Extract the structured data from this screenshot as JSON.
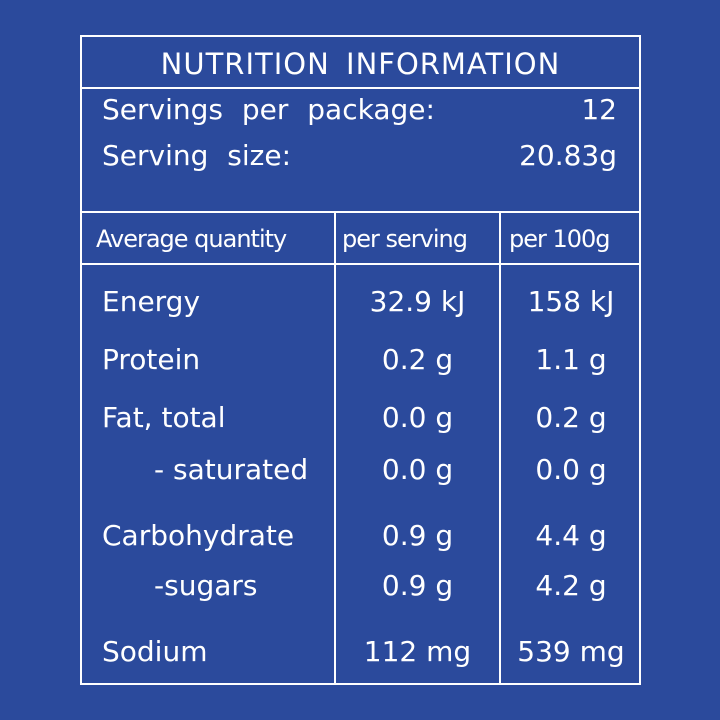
{
  "title": "NUTRITION INFORMATION",
  "servings": [
    {
      "label": "Servings per package:",
      "value": "12"
    },
    {
      "label": "Serving size:",
      "value": "20.83g"
    }
  ],
  "header": {
    "col1": "Average quantity",
    "col2": "per serving",
    "col3": "per 100g"
  },
  "rows": [
    {
      "name": "Energy",
      "per_serving": "32.9 kJ",
      "per_100g": "158 kJ"
    },
    {
      "name": "Protein",
      "per_serving": "0.2 g",
      "per_100g": "1.1 g"
    },
    {
      "name": "Fat, total",
      "per_serving": "0.0 g",
      "per_100g": "0.2 g"
    },
    {
      "name": "- saturated",
      "per_serving": "0.0 g",
      "per_100g": "0.0 g"
    },
    {
      "name": "Carbohydrate",
      "per_serving": "0.9 g",
      "per_100g": "4.4 g"
    },
    {
      "name": "-sugars",
      "per_serving": "0.9 g",
      "per_100g": "4.2 g"
    },
    {
      "name": "Sodium",
      "per_serving": "112 mg",
      "per_100g": "539 mg"
    }
  ],
  "colors": {
    "background": "#2b4a9c",
    "text": "#ffffff"
  }
}
